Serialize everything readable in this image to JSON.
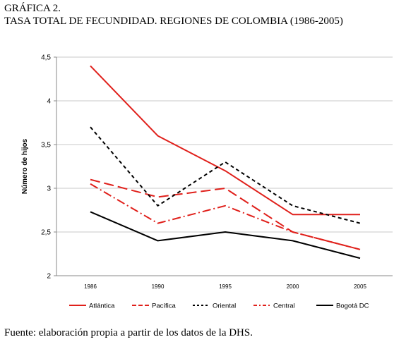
{
  "figure": {
    "label": "GRÁFICA 2.",
    "title": "TASA TOTAL DE FECUNDIDAD. REGIONES DE COLOMBIA (1986-2005)",
    "source": "Fuente: elaboración propia a partir de los datos de la DHS."
  },
  "chart_data": {
    "type": "line",
    "title": "",
    "xlabel": "",
    "ylabel": "Número de hijos",
    "categories": [
      "1986",
      "1990",
      "1995",
      "2000",
      "2005"
    ],
    "ylim": [
      2,
      4.5
    ],
    "yticks": [
      2,
      2.5,
      3,
      3.5,
      4,
      4.5
    ],
    "ytick_labels": [
      "2",
      "2,5",
      "3",
      "3,5",
      "4",
      "4,5"
    ],
    "grid": "horizontal",
    "legend_position": "bottom",
    "series": [
      {
        "name": "Atlántica",
        "values": [
          4.4,
          3.6,
          3.2,
          2.7,
          2.7
        ],
        "color": "#e0201b",
        "dash": "solid"
      },
      {
        "name": "Pacífica",
        "values": [
          3.1,
          2.9,
          3.0,
          2.5,
          2.3
        ],
        "color": "#e0201b",
        "dash": "long-dash"
      },
      {
        "name": "Oriental",
        "values": [
          3.7,
          2.8,
          3.3,
          2.8,
          2.6
        ],
        "color": "#000000",
        "dash": "short-dash"
      },
      {
        "name": "Central",
        "values": [
          3.05,
          2.6,
          2.8,
          2.5,
          2.3
        ],
        "color": "#e0201b",
        "dash": "dash-dot"
      },
      {
        "name": "Bogotá DC",
        "values": [
          2.73,
          2.4,
          2.5,
          2.4,
          2.2
        ],
        "color": "#000000",
        "dash": "solid"
      }
    ]
  }
}
